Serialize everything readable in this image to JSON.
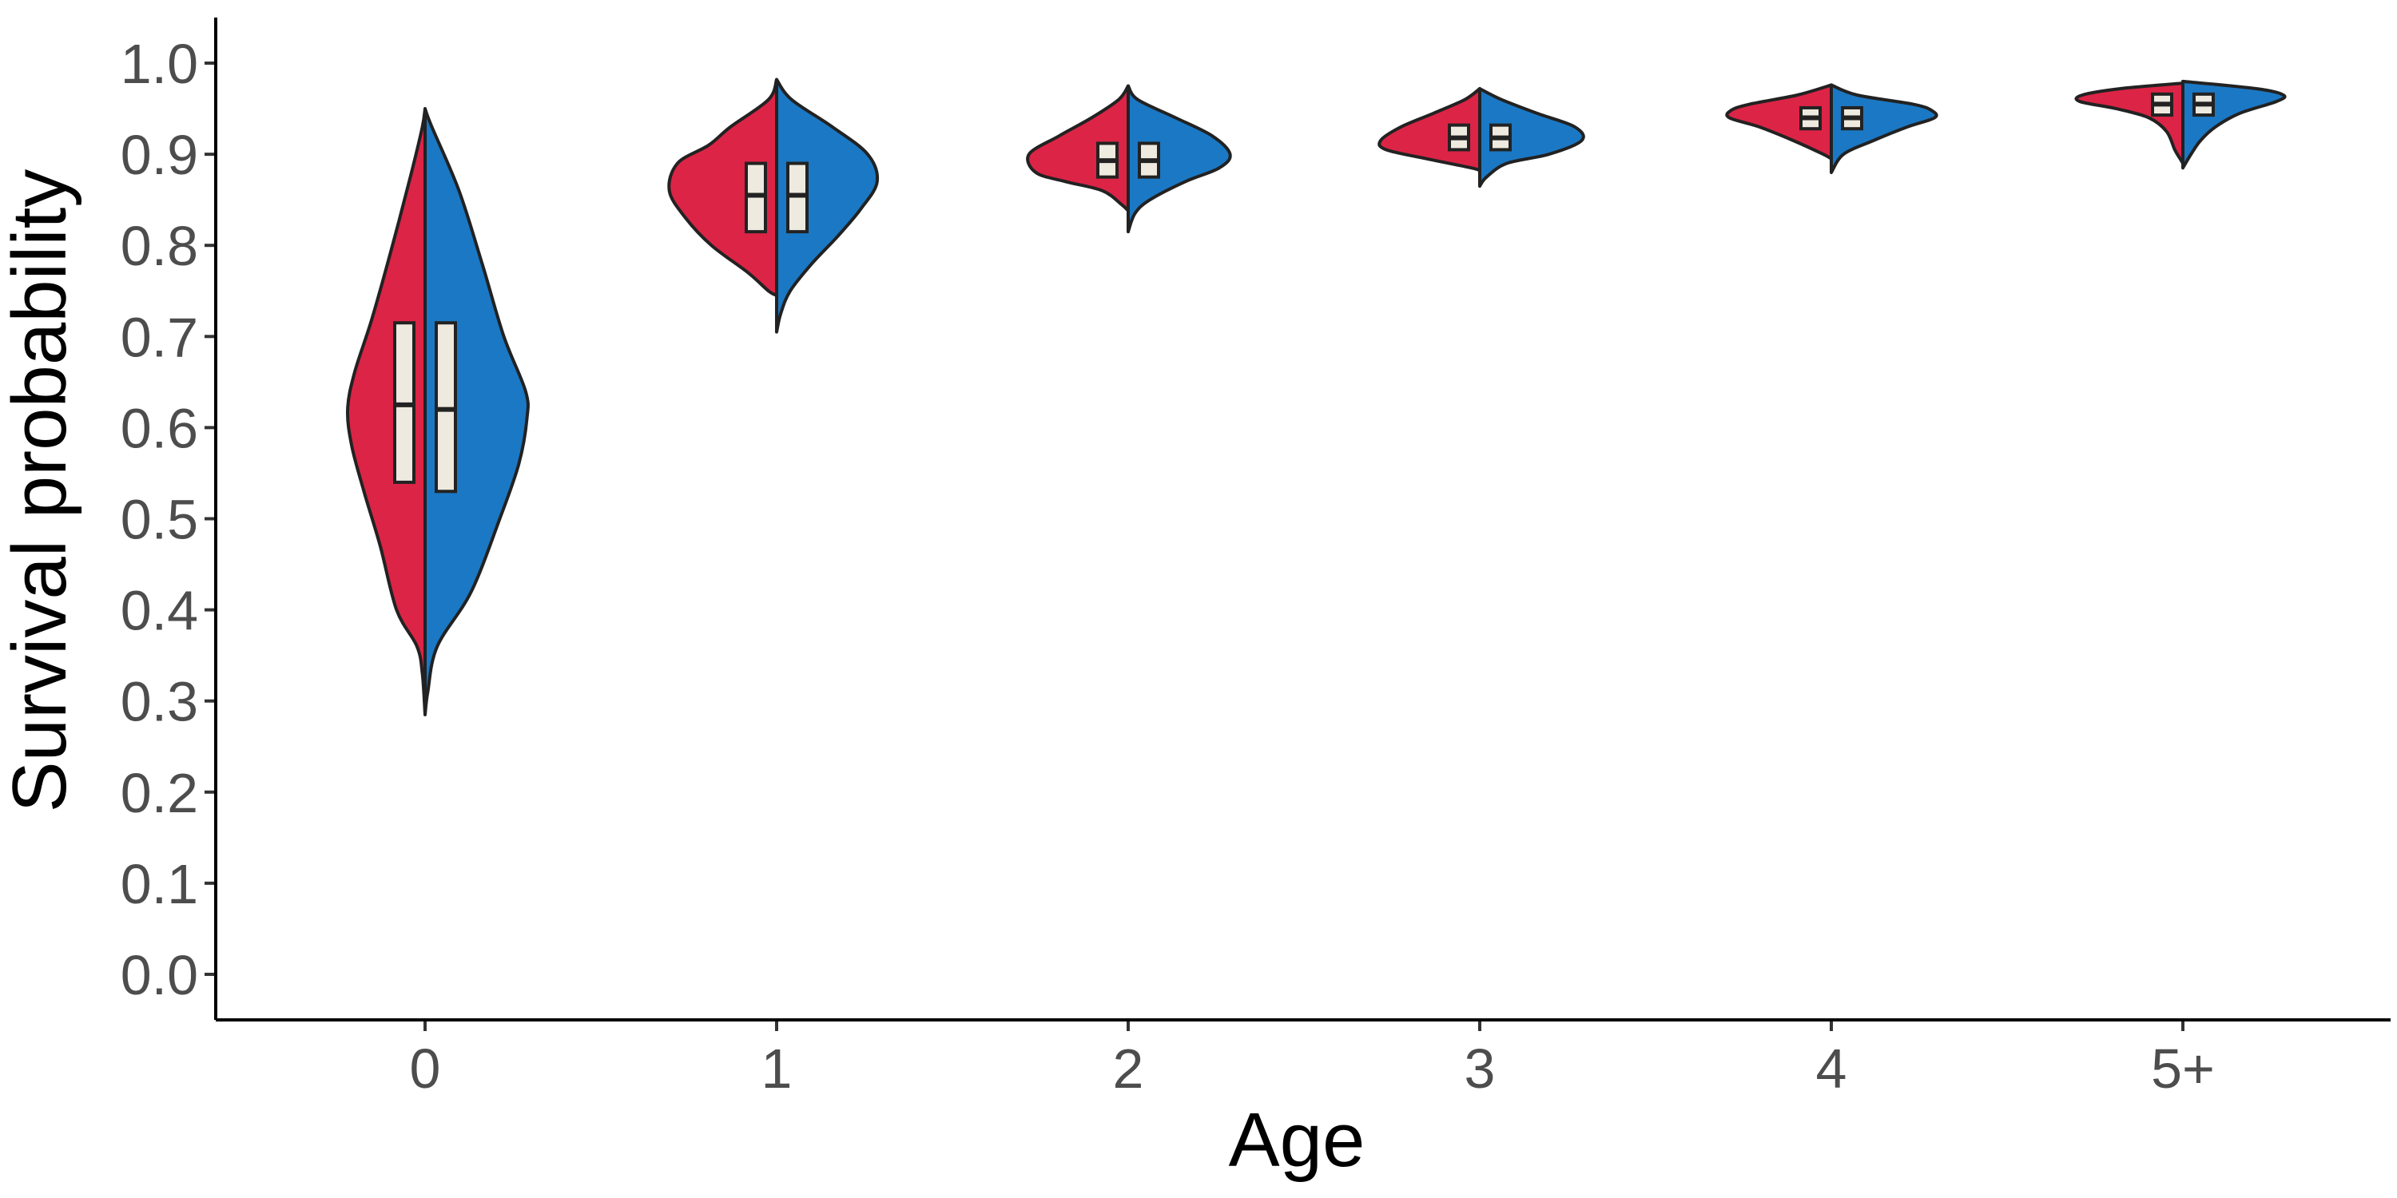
{
  "chart_data": {
    "type": "split-violin",
    "xlabel": "Age",
    "ylabel": "Survival probability",
    "categories": [
      "0",
      "1",
      "2",
      "3",
      "4",
      "5+"
    ],
    "ylim": [
      -0.05,
      1.05
    ],
    "yticks": [
      "0.0",
      "0.1",
      "0.2",
      "0.3",
      "0.4",
      "0.5",
      "0.6",
      "0.7",
      "0.8",
      "0.9",
      "1.0"
    ],
    "grid": false,
    "legend": "none",
    "colors": {
      "left": "#dc2446",
      "right": "#1b78c4",
      "box": "#eeeadf",
      "outline": "#222222"
    },
    "violins": [
      {
        "category": "0",
        "left": {
          "box": {
            "q1": 0.54,
            "median": 0.625,
            "q3": 0.715
          },
          "profile": [
            [
              0.95,
              0.0
            ],
            [
              0.93,
              0.02
            ],
            [
              0.88,
              0.1
            ],
            [
              0.8,
              0.24
            ],
            [
              0.72,
              0.39
            ],
            [
              0.66,
              0.52
            ],
            [
              0.62,
              0.57
            ],
            [
              0.58,
              0.54
            ],
            [
              0.53,
              0.45
            ],
            [
              0.47,
              0.33
            ],
            [
              0.4,
              0.21
            ],
            [
              0.36,
              0.06
            ],
            [
              0.33,
              0.02
            ],
            [
              0.285,
              0.0
            ]
          ]
        },
        "right": {
          "box": {
            "q1": 0.53,
            "median": 0.62,
            "q3": 0.715
          },
          "profile": [
            [
              0.95,
              0.0
            ],
            [
              0.93,
              0.05
            ],
            [
              0.86,
              0.25
            ],
            [
              0.78,
              0.42
            ],
            [
              0.7,
              0.58
            ],
            [
              0.64,
              0.74
            ],
            [
              0.61,
              0.75
            ],
            [
              0.56,
              0.69
            ],
            [
              0.5,
              0.55
            ],
            [
              0.42,
              0.34
            ],
            [
              0.36,
              0.09
            ],
            [
              0.31,
              0.02
            ],
            [
              0.285,
              0.0
            ]
          ]
        }
      },
      {
        "category": "1",
        "left": {
          "box": {
            "q1": 0.815,
            "median": 0.855,
            "q3": 0.89
          },
          "profile": [
            [
              0.982,
              0.0
            ],
            [
              0.96,
              0.06
            ],
            [
              0.93,
              0.34
            ],
            [
              0.91,
              0.5
            ],
            [
              0.89,
              0.73
            ],
            [
              0.86,
              0.79
            ],
            [
              0.83,
              0.67
            ],
            [
              0.8,
              0.48
            ],
            [
              0.77,
              0.21
            ],
            [
              0.75,
              0.06
            ],
            [
              0.745,
              0.0
            ]
          ]
        },
        "right": {
          "box": {
            "q1": 0.815,
            "median": 0.855,
            "q3": 0.89
          },
          "profile": [
            [
              0.982,
              0.0
            ],
            [
              0.96,
              0.11
            ],
            [
              0.93,
              0.41
            ],
            [
              0.9,
              0.67
            ],
            [
              0.87,
              0.74
            ],
            [
              0.84,
              0.62
            ],
            [
              0.81,
              0.45
            ],
            [
              0.78,
              0.26
            ],
            [
              0.75,
              0.1
            ],
            [
              0.725,
              0.03
            ],
            [
              0.705,
              0.0
            ]
          ]
        }
      },
      {
        "category": "2",
        "left": {
          "box": {
            "q1": 0.875,
            "median": 0.893,
            "q3": 0.912
          },
          "profile": [
            [
              0.975,
              0.0
            ],
            [
              0.96,
              0.07
            ],
            [
              0.94,
              0.27
            ],
            [
              0.92,
              0.51
            ],
            [
              0.9,
              0.73
            ],
            [
              0.88,
              0.68
            ],
            [
              0.87,
              0.46
            ],
            [
              0.86,
              0.19
            ],
            [
              0.845,
              0.05
            ],
            [
              0.838,
              0.0
            ]
          ]
        },
        "right": {
          "box": {
            "q1": 0.875,
            "median": 0.893,
            "q3": 0.912
          },
          "profile": [
            [
              0.975,
              0.0
            ],
            [
              0.96,
              0.07
            ],
            [
              0.94,
              0.35
            ],
            [
              0.92,
              0.62
            ],
            [
              0.9,
              0.75
            ],
            [
              0.885,
              0.67
            ],
            [
              0.87,
              0.42
            ],
            [
              0.85,
              0.16
            ],
            [
              0.835,
              0.05
            ],
            [
              0.815,
              0.0
            ]
          ]
        }
      },
      {
        "category": "3",
        "left": {
          "box": {
            "q1": 0.905,
            "median": 0.918,
            "q3": 0.932
          },
          "profile": [
            [
              0.972,
              0.0
            ],
            [
              0.96,
              0.11
            ],
            [
              0.945,
              0.34
            ],
            [
              0.93,
              0.58
            ],
            [
              0.915,
              0.73
            ],
            [
              0.905,
              0.69
            ],
            [
              0.895,
              0.39
            ],
            [
              0.885,
              0.06
            ],
            [
              0.882,
              0.0
            ]
          ]
        },
        "right": {
          "box": {
            "q1": 0.905,
            "median": 0.918,
            "q3": 0.932
          },
          "profile": [
            [
              0.972,
              0.0
            ],
            [
              0.96,
              0.16
            ],
            [
              0.945,
              0.42
            ],
            [
              0.93,
              0.7
            ],
            [
              0.915,
              0.75
            ],
            [
              0.9,
              0.51
            ],
            [
              0.89,
              0.2
            ],
            [
              0.875,
              0.05
            ],
            [
              0.865,
              0.0
            ]
          ]
        }
      },
      {
        "category": "4",
        "left": {
          "box": {
            "q1": 0.928,
            "median": 0.94,
            "q3": 0.951
          },
          "profile": [
            [
              0.976,
              0.0
            ],
            [
              0.965,
              0.25
            ],
            [
              0.955,
              0.6
            ],
            [
              0.948,
              0.74
            ],
            [
              0.94,
              0.75
            ],
            [
              0.93,
              0.53
            ],
            [
              0.915,
              0.28
            ],
            [
              0.9,
              0.06
            ],
            [
              0.895,
              0.0
            ]
          ]
        },
        "right": {
          "box": {
            "q1": 0.928,
            "median": 0.94,
            "q3": 0.951
          },
          "profile": [
            [
              0.976,
              0.0
            ],
            [
              0.965,
              0.19
            ],
            [
              0.955,
              0.6
            ],
            [
              0.948,
              0.74
            ],
            [
              0.94,
              0.76
            ],
            [
              0.93,
              0.56
            ],
            [
              0.915,
              0.31
            ],
            [
              0.9,
              0.09
            ],
            [
              0.88,
              0.0
            ]
          ]
        }
      },
      {
        "category": "5+",
        "left": {
          "box": {
            "q1": 0.943,
            "median": 0.955,
            "q3": 0.966
          },
          "profile": [
            [
              0.978,
              0.0
            ],
            [
              0.972,
              0.46
            ],
            [
              0.965,
              0.74
            ],
            [
              0.958,
              0.76
            ],
            [
              0.95,
              0.49
            ],
            [
              0.94,
              0.25
            ],
            [
              0.925,
              0.12
            ],
            [
              0.905,
              0.06
            ],
            [
              0.895,
              0.02
            ],
            [
              0.89,
              0.0
            ]
          ]
        },
        "right": {
          "box": {
            "q1": 0.943,
            "median": 0.955,
            "q3": 0.966
          },
          "profile": [
            [
              0.98,
              0.0
            ],
            [
              0.972,
              0.54
            ],
            [
              0.965,
              0.74
            ],
            [
              0.958,
              0.69
            ],
            [
              0.945,
              0.42
            ],
            [
              0.93,
              0.24
            ],
            [
              0.915,
              0.13
            ],
            [
              0.9,
              0.06
            ],
            [
              0.885,
              0.0
            ]
          ]
        }
      }
    ]
  }
}
